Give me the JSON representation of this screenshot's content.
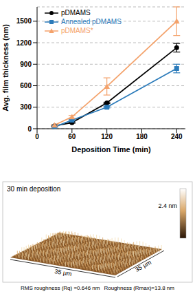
{
  "chart_data": {
    "type": "line",
    "x_label": "Deposition Time (min)",
    "y_label": "Avg. film thickness (nm)",
    "x": [
      30,
      60,
      120,
      240
    ],
    "xlim": [
      0,
      255
    ],
    "xticks": [
      0,
      60,
      120,
      180,
      240
    ],
    "ylim": [
      0,
      1700
    ],
    "yticks": [
      0,
      300,
      600,
      900,
      1200,
      1500
    ],
    "grid": true,
    "legend": "top left",
    "series": [
      {
        "name": "pDMAMS",
        "color": "#000000",
        "marker": "circle",
        "values": [
          40,
          85,
          360,
          1130
        ],
        "errors": [
          5,
          8,
          10,
          60
        ]
      },
      {
        "name": "Annealed pDMAMS",
        "color": "#2b7bba",
        "marker": "square",
        "values": [
          25,
          120,
          300,
          840
        ],
        "errors": [
          5,
          8,
          10,
          60
        ]
      },
      {
        "name": "pDMAMS*",
        "color": "#f4a26b",
        "marker": "triangle",
        "values": [
          50,
          165,
          590,
          1500
        ],
        "errors": [
          10,
          20,
          120,
          200
        ]
      }
    ]
  },
  "afm_image": {
    "title": "30 min deposition",
    "colorbar_label": "2.4 nm",
    "x_size_label": "35 µm",
    "y_size_label": "35 µm",
    "roughness": [
      "RMS roughness (Rq) =0.646 nm",
      "Roughness (Rmax)=13.8 nm"
    ]
  }
}
